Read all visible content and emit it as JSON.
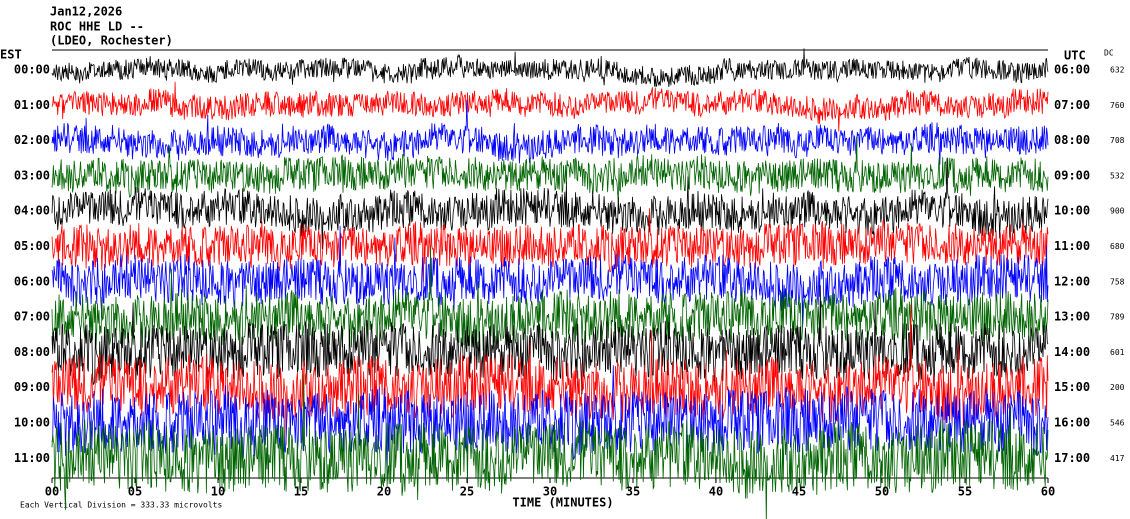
{
  "chart_data": {
    "type": "helicorder",
    "title": "Jan12,2026",
    "subtitle": "ROC HHE LD --",
    "station": "(LDEO, Rochester)",
    "left_axis_label": "EST",
    "right_axis_label": "UTC",
    "dc_label": "DC",
    "xlabel": "TIME (MINUTES)",
    "footnote": "Each Vertical Division = 333.33 microvolts",
    "xlim": [
      0,
      60
    ],
    "xticks": [
      {
        "value": 0,
        "label": "00"
      },
      {
        "value": 5,
        "label": "05"
      },
      10,
      15,
      20,
      25,
      30,
      35,
      40,
      45,
      50,
      55,
      60
    ],
    "rows": [
      {
        "est": "00:00",
        "utc": "06:00",
        "dc": 632,
        "color": "#000000"
      },
      {
        "est": "01:00",
        "utc": "07:00",
        "dc": 760,
        "color": "#ff0000"
      },
      {
        "est": "02:00",
        "utc": "08:00",
        "dc": 708,
        "color": "#0000ff"
      },
      {
        "est": "03:00",
        "utc": "09:00",
        "dc": 532,
        "color": "#006400"
      },
      {
        "est": "04:00",
        "utc": "10:00",
        "dc": 900,
        "color": "#000000"
      },
      {
        "est": "05:00",
        "utc": "11:00",
        "dc": 680,
        "color": "#ff0000"
      },
      {
        "est": "06:00",
        "utc": "12:00",
        "dc": 758,
        "color": "#0000ff"
      },
      {
        "est": "07:00",
        "utc": "13:00",
        "dc": 789,
        "color": "#006400"
      },
      {
        "est": "08:00",
        "utc": "14:00",
        "dc": 601,
        "color": "#000000"
      },
      {
        "est": "09:00",
        "utc": "15:00",
        "dc": 200,
        "color": "#ff0000"
      },
      {
        "est": "10:00",
        "utc": "16:00",
        "dc": 546,
        "color": "#0000ff"
      },
      {
        "est": "11:00",
        "utc": "17:00",
        "dc": 417,
        "color": "#006400"
      }
    ]
  }
}
